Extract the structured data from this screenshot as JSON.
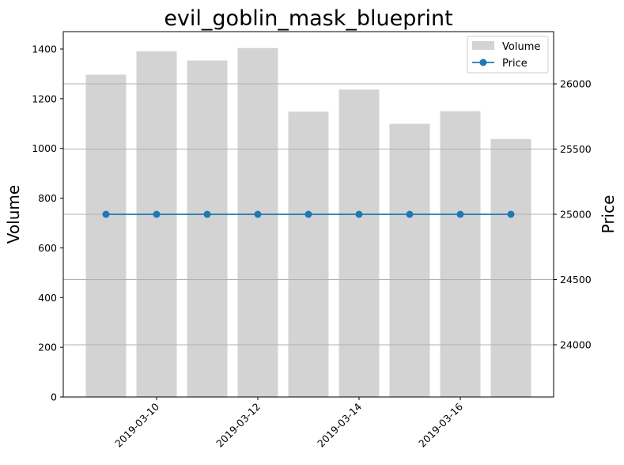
{
  "chart_data": {
    "type": "bar",
    "title": "evil_goblin_mask_blueprint",
    "x": [
      "2019-03-09",
      "2019-03-10",
      "2019-03-11",
      "2019-03-12",
      "2019-03-13",
      "2019-03-14",
      "2019-03-15",
      "2019-03-16",
      "2019-03-17"
    ],
    "xticks": [
      "2019-03-10",
      "2019-03-12",
      "2019-03-14",
      "2019-03-16"
    ],
    "xlabel": "",
    "ylabel": "Volume",
    "y2label": "Price",
    "ylim": [
      0,
      1470
    ],
    "y2lim": [
      23600,
      26400
    ],
    "yticks": [
      0,
      200,
      400,
      600,
      800,
      1000,
      1200,
      1400
    ],
    "y2ticks": [
      24000,
      24500,
      25000,
      25500,
      26000
    ],
    "grid": "horizontal, right axis",
    "legend_position": "upper right",
    "series": [
      {
        "name": "Volume",
        "type": "bar",
        "axis": "left",
        "color": "#d3d3d3",
        "values": [
          1297,
          1391,
          1354,
          1404,
          1148,
          1237,
          1099,
          1150,
          1038
        ]
      },
      {
        "name": "Price",
        "type": "line",
        "axis": "right",
        "color": "#1f77b4",
        "values": [
          25000,
          25000,
          25000,
          25000,
          25000,
          25000,
          25000,
          25000,
          25000
        ]
      }
    ]
  }
}
